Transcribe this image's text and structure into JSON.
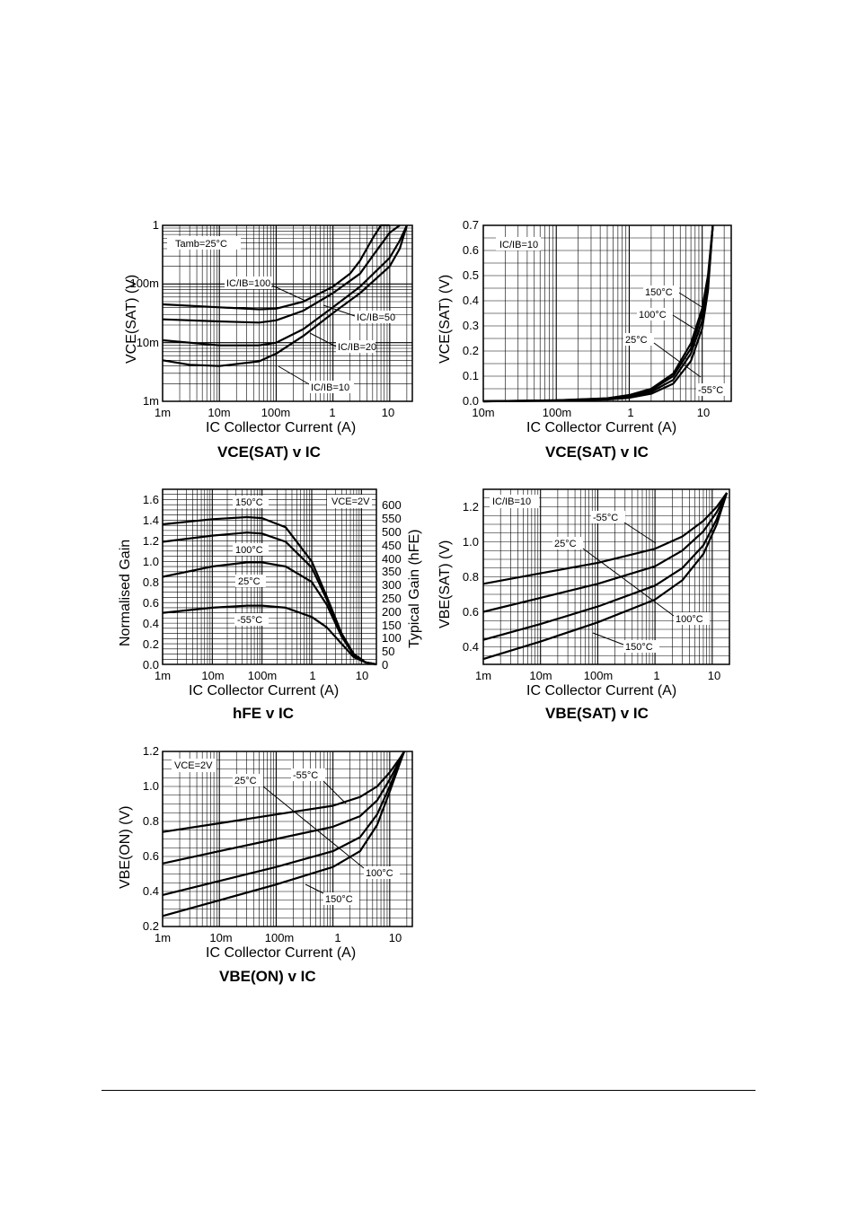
{
  "chart_data": [
    {
      "type": "line",
      "title": "VCE(SAT) v IC",
      "xlabel": "IC  Collector Current (A)",
      "ylabel": "VCE(SAT)  (V)",
      "x_scale": "log",
      "y_scale": "log",
      "xlim": [
        0.001,
        25
      ],
      "ylim": [
        0.001,
        1
      ],
      "x_ticks": [
        "1m",
        "10m",
        "100m",
        "1",
        "10"
      ],
      "y_ticks": [
        "1m",
        "10m",
        "100m",
        "1"
      ],
      "grid": true,
      "condition": "Tamb=25°C",
      "series": [
        {
          "name": "IC/IB=100",
          "x": [
            0.001,
            0.01,
            0.05,
            0.1,
            0.3,
            1,
            2,
            3,
            5,
            7,
            10
          ],
          "y": [
            0.045,
            0.04,
            0.037,
            0.038,
            0.05,
            0.09,
            0.15,
            0.25,
            0.6,
            1.1,
            2.0
          ]
        },
        {
          "name": "IC/IB=50",
          "x": [
            0.001,
            0.01,
            0.05,
            0.1,
            0.3,
            1,
            3,
            5,
            10,
            15
          ],
          "y": [
            0.025,
            0.023,
            0.022,
            0.024,
            0.035,
            0.07,
            0.15,
            0.3,
            0.75,
            1.5
          ]
        },
        {
          "name": "IC/IB=20",
          "x": [
            0.001,
            0.01,
            0.05,
            0.1,
            0.3,
            1,
            3,
            10,
            15,
            20
          ],
          "y": [
            0.011,
            0.009,
            0.009,
            0.01,
            0.017,
            0.04,
            0.09,
            0.28,
            0.55,
            1.2
          ]
        },
        {
          "name": "IC/IB=10",
          "x": [
            0.001,
            0.003,
            0.01,
            0.05,
            0.1,
            0.3,
            1,
            3,
            10,
            15,
            20
          ],
          "y": [
            0.005,
            0.0042,
            0.004,
            0.0048,
            0.0065,
            0.013,
            0.032,
            0.07,
            0.2,
            0.4,
            1.1
          ]
        }
      ],
      "annotations": [
        "IC/IB=100",
        "IC/IB=50",
        "IC/IB=20",
        "IC/IB=10"
      ]
    },
    {
      "type": "line",
      "title": "VCE(SAT) v IC",
      "xlabel": "IC  Collector Current (A)",
      "ylabel": "VCE(SAT)  (V)",
      "x_scale": "log",
      "y_scale": "linear",
      "xlim": [
        0.01,
        25
      ],
      "ylim": [
        0,
        0.7
      ],
      "x_ticks": [
        "10m",
        "100m",
        "1",
        "10"
      ],
      "y_ticks": [
        "0.0",
        "0.1",
        "0.2",
        "0.3",
        "0.4",
        "0.5",
        "0.6",
        "0.7"
      ],
      "grid": true,
      "condition": "IC/IB=10",
      "series": [
        {
          "name": "150°C",
          "x": [
            0.01,
            0.1,
            0.5,
            1,
            2,
            4,
            7,
            10,
            12,
            14
          ],
          "y": [
            0.0,
            0.004,
            0.012,
            0.025,
            0.05,
            0.11,
            0.23,
            0.37,
            0.5,
            0.7
          ]
        },
        {
          "name": "100°C",
          "x": [
            0.01,
            0.1,
            0.5,
            1,
            2,
            4,
            7,
            10,
            12,
            14
          ],
          "y": [
            0.0,
            0.004,
            0.011,
            0.022,
            0.045,
            0.1,
            0.21,
            0.35,
            0.48,
            0.7
          ]
        },
        {
          "name": "25°C",
          "x": [
            0.01,
            0.1,
            0.5,
            1,
            2,
            4,
            7,
            10,
            12,
            14
          ],
          "y": [
            0.0,
            0.003,
            0.009,
            0.018,
            0.038,
            0.085,
            0.19,
            0.32,
            0.46,
            0.7
          ]
        },
        {
          "name": "-55°C",
          "x": [
            0.01,
            0.1,
            0.5,
            1,
            2,
            4,
            7,
            10,
            12,
            14
          ],
          "y": [
            0.0,
            0.002,
            0.007,
            0.014,
            0.03,
            0.07,
            0.16,
            0.29,
            0.44,
            0.7
          ]
        }
      ],
      "annotations": [
        "150°C",
        "100°C",
        "25°C",
        "-55°C"
      ]
    },
    {
      "type": "line",
      "title": "hFE v IC",
      "xlabel": "IC  Collector Current (A)",
      "ylabel": "Normalised Gain",
      "y2label": "Typical Gain (hFE)",
      "x_scale": "log",
      "y_scale": "linear",
      "xlim": [
        0.001,
        20
      ],
      "ylim": [
        0,
        1.7
      ],
      "x_ticks": [
        "1m",
        "10m",
        "100m",
        "1",
        "10"
      ],
      "y_ticks": [
        "0.0",
        "0.2",
        "0.4",
        "0.6",
        "0.8",
        "1.0",
        "1.2",
        "1.4",
        "1.6"
      ],
      "y2_ticks": [
        "0",
        "50",
        "100",
        "150",
        "200",
        "250",
        "300",
        "350",
        "400",
        "450",
        "500",
        "550",
        "600"
      ],
      "grid": true,
      "condition": "VCE=2V",
      "series": [
        {
          "name": "150°C",
          "x": [
            0.001,
            0.01,
            0.05,
            0.1,
            0.3,
            1,
            2,
            4,
            7,
            12,
            20
          ],
          "y": [
            1.36,
            1.41,
            1.43,
            1.42,
            1.33,
            1.0,
            0.66,
            0.3,
            0.1,
            0.02,
            0.0
          ]
        },
        {
          "name": "100°C",
          "x": [
            0.001,
            0.01,
            0.05,
            0.1,
            0.3,
            1,
            2,
            4,
            7,
            12,
            20
          ],
          "y": [
            1.19,
            1.25,
            1.28,
            1.27,
            1.19,
            0.94,
            0.63,
            0.29,
            0.1,
            0.02,
            0.0
          ]
        },
        {
          "name": "25°C",
          "x": [
            0.001,
            0.01,
            0.05,
            0.1,
            0.3,
            1,
            2,
            4,
            7,
            12,
            20
          ],
          "y": [
            0.85,
            0.95,
            0.99,
            0.99,
            0.95,
            0.8,
            0.58,
            0.27,
            0.09,
            0.02,
            0.0
          ]
        },
        {
          "name": "-55°C",
          "x": [
            0.001,
            0.01,
            0.05,
            0.1,
            0.3,
            1,
            2,
            4,
            7,
            12,
            20
          ],
          "y": [
            0.5,
            0.55,
            0.57,
            0.57,
            0.55,
            0.46,
            0.36,
            0.2,
            0.07,
            0.02,
            0.0
          ]
        }
      ],
      "annotations": [
        "150°C",
        "100°C",
        "25°C",
        "-55°C"
      ]
    },
    {
      "type": "line",
      "title": "VBE(SAT) v IC",
      "xlabel": "IC  Collector Current (A)",
      "ylabel": "VBE(SAT)  (V)",
      "x_scale": "log",
      "y_scale": "linear",
      "xlim": [
        0.001,
        20
      ],
      "ylim": [
        0.3,
        1.3
      ],
      "x_ticks": [
        "1m",
        "10m",
        "100m",
        "1",
        "10"
      ],
      "y_ticks": [
        "0.4",
        "0.6",
        "0.8",
        "1.0",
        "1.2"
      ],
      "grid": true,
      "condition": "IC/IB=10",
      "series": [
        {
          "name": "-55°C",
          "x": [
            0.001,
            0.01,
            0.1,
            1,
            3,
            7,
            12,
            18
          ],
          "y": [
            0.76,
            0.82,
            0.88,
            0.96,
            1.03,
            1.12,
            1.2,
            1.28
          ]
        },
        {
          "name": "25°C",
          "x": [
            0.001,
            0.01,
            0.1,
            1,
            3,
            7,
            12,
            18
          ],
          "y": [
            0.6,
            0.68,
            0.76,
            0.86,
            0.95,
            1.06,
            1.17,
            1.28
          ]
        },
        {
          "name": "100°C",
          "x": [
            0.001,
            0.01,
            0.1,
            1,
            3,
            7,
            12,
            18
          ],
          "y": [
            0.44,
            0.53,
            0.63,
            0.75,
            0.85,
            0.98,
            1.13,
            1.28
          ]
        },
        {
          "name": "150°C",
          "x": [
            0.001,
            0.01,
            0.1,
            1,
            3,
            7,
            12,
            18
          ],
          "y": [
            0.33,
            0.43,
            0.54,
            0.67,
            0.78,
            0.93,
            1.1,
            1.28
          ]
        }
      ],
      "annotations": [
        "-55°C",
        "25°C",
        "100°C",
        "150°C"
      ]
    },
    {
      "type": "line",
      "title": "VBE(ON) v IC",
      "xlabel": "IC  Collector Current (A)",
      "ylabel": "VBE(ON)  (V)",
      "x_scale": "log",
      "y_scale": "linear",
      "xlim": [
        0.001,
        25
      ],
      "ylim": [
        0.2,
        1.2
      ],
      "x_ticks": [
        "1m",
        "10m",
        "100m",
        "1",
        "10"
      ],
      "y_ticks": [
        "0.2",
        "0.4",
        "0.6",
        "0.8",
        "1.0",
        "1.2"
      ],
      "grid": true,
      "condition": "VCE=2V",
      "series": [
        {
          "name": "-55°C",
          "x": [
            0.001,
            0.01,
            0.1,
            1,
            3,
            6,
            10,
            15,
            18
          ],
          "y": [
            0.74,
            0.79,
            0.84,
            0.89,
            0.94,
            1.0,
            1.08,
            1.16,
            1.2
          ]
        },
        {
          "name": "25°C",
          "x": [
            0.001,
            0.01,
            0.1,
            1,
            3,
            6,
            10,
            15,
            18
          ],
          "y": [
            0.56,
            0.63,
            0.7,
            0.77,
            0.83,
            0.92,
            1.04,
            1.15,
            1.2
          ]
        },
        {
          "name": "100°C",
          "x": [
            0.001,
            0.01,
            0.1,
            1,
            3,
            6,
            10,
            15,
            18
          ],
          "y": [
            0.38,
            0.46,
            0.54,
            0.63,
            0.71,
            0.84,
            1.0,
            1.14,
            1.2
          ]
        },
        {
          "name": "150°C",
          "x": [
            0.001,
            0.01,
            0.1,
            1,
            3,
            6,
            10,
            15,
            18
          ],
          "y": [
            0.26,
            0.35,
            0.44,
            0.54,
            0.63,
            0.78,
            0.97,
            1.13,
            1.2
          ]
        }
      ],
      "annotations": [
        "-55°C",
        "25°C",
        "100°C",
        "150°C"
      ]
    }
  ]
}
